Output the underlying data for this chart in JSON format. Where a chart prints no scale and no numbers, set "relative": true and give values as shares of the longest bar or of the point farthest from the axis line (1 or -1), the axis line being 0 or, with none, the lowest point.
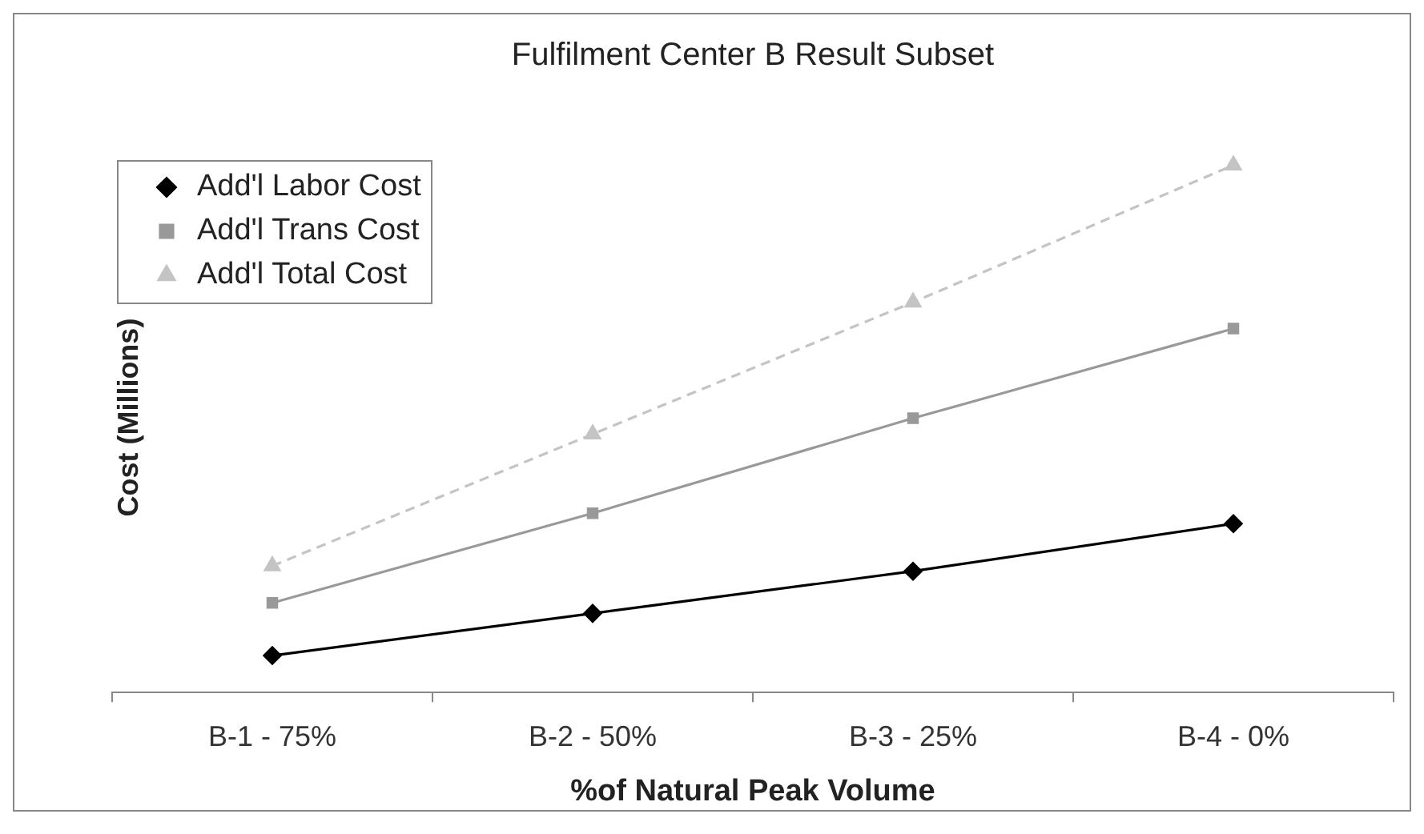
{
  "chart_data": {
    "type": "line",
    "title": "Fulfilment Center B Result Subset",
    "xlabel": "%of Natural Peak Volume",
    "ylabel": "Cost (Millions)",
    "categories": [
      "B-1 - 75%",
      "B-2 - 50%",
      "B-3 - 25%",
      "B-4 - 0%"
    ],
    "relative": true,
    "series": [
      {
        "name": "Add'l Labor Cost",
        "color": "#000000",
        "values": [
          0.07,
          0.15,
          0.23,
          0.32
        ],
        "marker": "diamond",
        "line_style": "solid"
      },
      {
        "name": "Add'l Trans Cost",
        "color": "#999999",
        "values": [
          0.17,
          0.34,
          0.52,
          0.69
        ],
        "marker": "square",
        "line_style": "solid"
      },
      {
        "name": "Add'l Total Cost",
        "color": "#c4c4c4",
        "values": [
          0.24,
          0.49,
          0.74,
          1
        ],
        "marker": "triangle",
        "line_style": "dashed"
      }
    ],
    "legend": "top left"
  }
}
